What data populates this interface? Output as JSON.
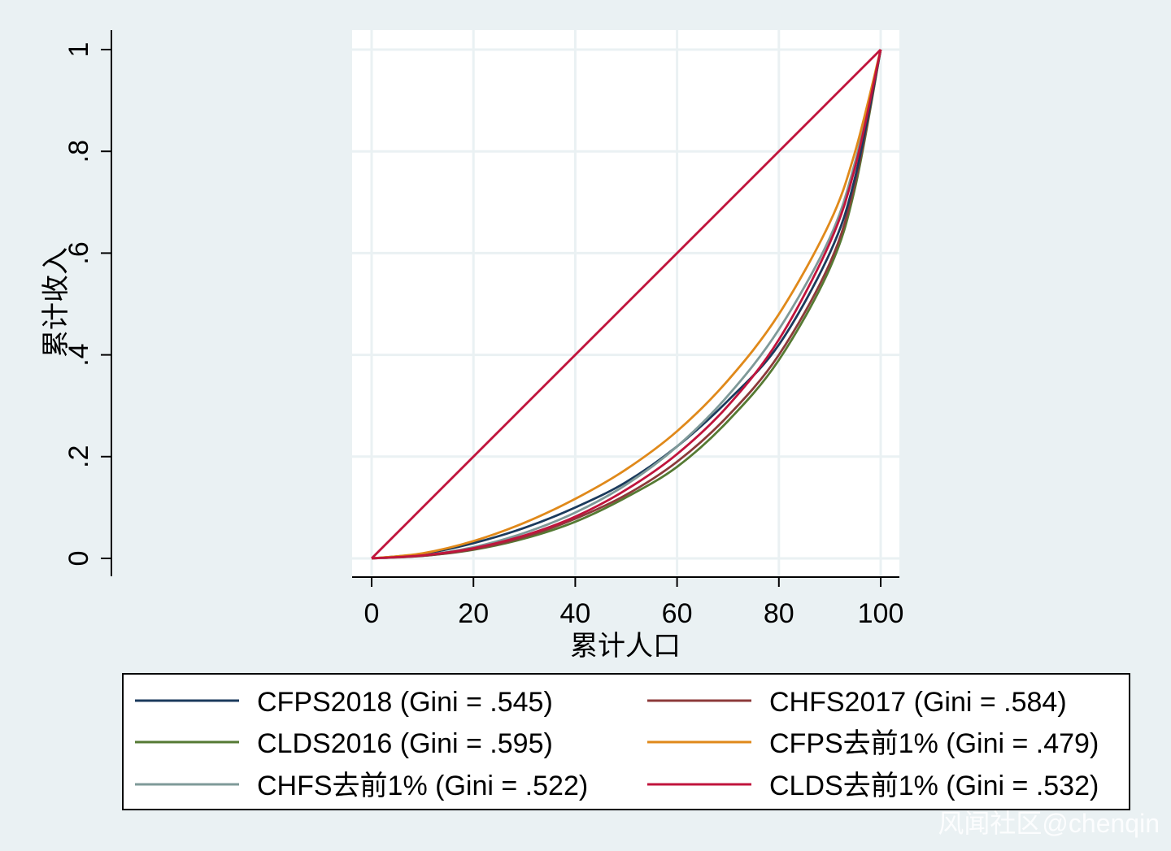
{
  "chart_data": {
    "type": "line",
    "title": "",
    "xlabel": "累计人口",
    "ylabel": "累计收入",
    "xlim": [
      0,
      100
    ],
    "ylim": [
      0,
      1
    ],
    "x_ticks": [
      "0",
      "20",
      "40",
      "60",
      "80",
      "100"
    ],
    "y_ticks": [
      "0",
      ".2",
      ".4",
      ".6",
      ".8",
      "1"
    ],
    "grid": true,
    "legend_position": "bottom",
    "equality_line": {
      "x": [
        0,
        100
      ],
      "y": [
        0,
        1
      ],
      "color": "#c0143c"
    },
    "series": [
      {
        "name": "CFPS2018 (Gini = .545)",
        "color": "#1b3a5c",
        "x": [
          0,
          10,
          20,
          30,
          40,
          50,
          60,
          70,
          80,
          90,
          95,
          100
        ],
        "y": [
          0,
          0.009,
          0.03,
          0.06,
          0.1,
          0.15,
          0.22,
          0.31,
          0.42,
          0.6,
          0.75,
          1
        ]
      },
      {
        "name": "CHFS2017 (Gini = .584)",
        "color": "#8c3a3a",
        "x": [
          0,
          10,
          20,
          30,
          40,
          50,
          60,
          70,
          80,
          90,
          95,
          100
        ],
        "y": [
          0,
          0.005,
          0.018,
          0.042,
          0.078,
          0.125,
          0.19,
          0.28,
          0.4,
          0.58,
          0.74,
          1
        ]
      },
      {
        "name": "CLDS2016 (Gini = .595)",
        "color": "#557a33",
        "x": [
          0,
          10,
          20,
          30,
          40,
          50,
          60,
          70,
          80,
          90,
          95,
          100
        ],
        "y": [
          0,
          0.005,
          0.017,
          0.039,
          0.072,
          0.12,
          0.18,
          0.27,
          0.39,
          0.57,
          0.73,
          1
        ]
      },
      {
        "name": "CFPS去前1% (Gini = .479)",
        "color": "#e0891a",
        "x": [
          0,
          10,
          20,
          30,
          40,
          50,
          60,
          70,
          80,
          90,
          95,
          100
        ],
        "y": [
          0,
          0.01,
          0.034,
          0.07,
          0.117,
          0.175,
          0.25,
          0.35,
          0.48,
          0.66,
          0.8,
          1
        ]
      },
      {
        "name": "CHFS去前1% (Gini = .522)",
        "color": "#7f9a99",
        "x": [
          0,
          10,
          20,
          30,
          40,
          50,
          60,
          70,
          80,
          90,
          95,
          100
        ],
        "y": [
          0,
          0.006,
          0.022,
          0.05,
          0.09,
          0.145,
          0.22,
          0.32,
          0.45,
          0.63,
          0.78,
          1
        ]
      },
      {
        "name": "CLDS去前1% (Gini = .532)",
        "color": "#c0143c",
        "x": [
          0,
          10,
          20,
          30,
          40,
          50,
          60,
          70,
          80,
          90,
          95,
          100
        ],
        "y": [
          0,
          0.006,
          0.02,
          0.045,
          0.082,
          0.135,
          0.205,
          0.3,
          0.43,
          0.62,
          0.77,
          1
        ]
      }
    ]
  },
  "legend": {
    "items": [
      {
        "label": "CFPS2018 (Gini = .545)",
        "color": "#1b3a5c"
      },
      {
        "label": "CHFS2017 (Gini = .584)",
        "color": "#8c3a3a"
      },
      {
        "label": "CLDS2016 (Gini = .595)",
        "color": "#557a33"
      },
      {
        "label": "CFPS去前1% (Gini = .479)",
        "color": "#e0891a"
      },
      {
        "label": "CHFS去前1% (Gini = .522)",
        "color": "#7f9a99"
      },
      {
        "label": "CLDS去前1% (Gini = .532)",
        "color": "#c0143c"
      }
    ]
  },
  "watermark": "风闻社区@chenqin"
}
